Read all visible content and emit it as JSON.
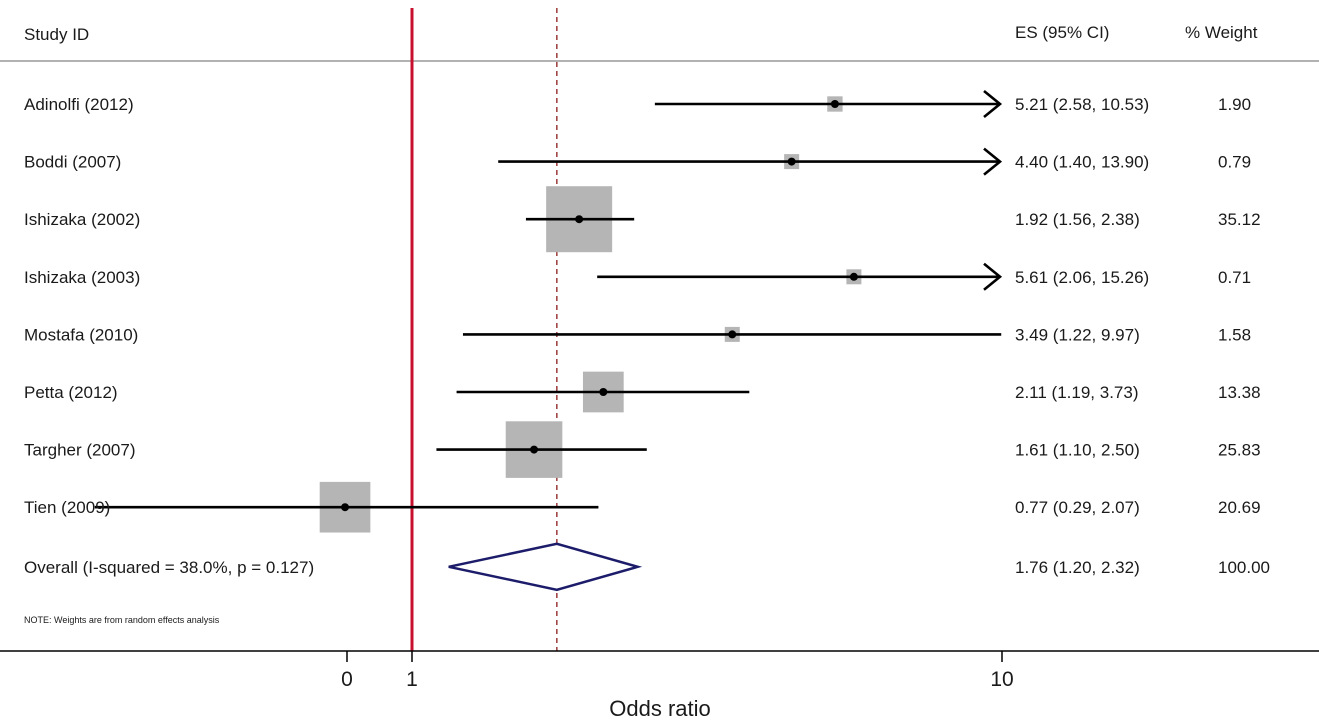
{
  "chart_data": {
    "type": "forest",
    "header": {
      "study": "Study  ID",
      "es": "ES (95% CI)",
      "weight": "%  Weight"
    },
    "xlabel": "Odds ratio",
    "x_ticks": [
      {
        "value": 0,
        "label": "0"
      },
      {
        "value": 1,
        "label": "1"
      },
      {
        "value": 10,
        "label": "10"
      }
    ],
    "null_line": 1,
    "overall_line": 1.76,
    "studies": [
      {
        "label": "Adinolfi (2012)",
        "es": 5.21,
        "lo": 2.58,
        "hi": 10.53,
        "weight": 1.9,
        "est_text": "5.21 (2.58, 10.53)",
        "weight_text": "1.90",
        "arrow_right": true
      },
      {
        "label": "Boddi (2007)",
        "es": 4.4,
        "lo": 1.4,
        "hi": 13.9,
        "weight": 0.79,
        "est_text": "4.40 (1.40, 13.90)",
        "weight_text": "0.79",
        "arrow_right": true
      },
      {
        "label": "Ishizaka (2002)",
        "es": 1.92,
        "lo": 1.56,
        "hi": 2.38,
        "weight": 35.12,
        "est_text": "1.92 (1.56, 2.38)",
        "weight_text": "35.12",
        "arrow_right": false
      },
      {
        "label": "Ishizaka (2003)",
        "es": 5.61,
        "lo": 2.06,
        "hi": 15.26,
        "weight": 0.71,
        "est_text": "5.61 (2.06, 15.26)",
        "weight_text": "0.71",
        "arrow_right": true
      },
      {
        "label": "Mostafa (2010)",
        "es": 3.49,
        "lo": 1.22,
        "hi": 9.97,
        "weight": 1.58,
        "est_text": "3.49 (1.22, 9.97)",
        "weight_text": "1.58",
        "arrow_right": false
      },
      {
        "label": "Petta (2012)",
        "es": 2.11,
        "lo": 1.19,
        "hi": 3.73,
        "weight": 13.38,
        "est_text": "2.11 (1.19, 3.73)",
        "weight_text": "13.38",
        "arrow_right": false
      },
      {
        "label": "Targher (2007)",
        "es": 1.61,
        "lo": 1.1,
        "hi": 2.5,
        "weight": 25.83,
        "est_text": "1.61 (1.10, 2.50)",
        "weight_text": "25.83",
        "arrow_right": false
      },
      {
        "label": "Tien (2009)",
        "es": 0.77,
        "lo": 0.29,
        "hi": 2.07,
        "weight": 20.69,
        "est_text": "0.77 (0.29, 2.07)",
        "weight_text": "20.69",
        "arrow_right": false
      }
    ],
    "overall": {
      "label": "Overall  (I-squared = 38.0%, p = 0.127)",
      "es": 1.76,
      "lo": 1.2,
      "hi": 2.32,
      "est_text": "1.76 (1.20, 2.32)",
      "weight_text": "100.00"
    },
    "note": "NOTE: Weights are from random effects analysis",
    "colors": {
      "null_line": "#c8102e",
      "overall_line": "#8b1a1a",
      "box": "#b5b5b5",
      "diamond": "#1c1c6b",
      "ci_line": "#000000",
      "rule": "#888888"
    }
  }
}
